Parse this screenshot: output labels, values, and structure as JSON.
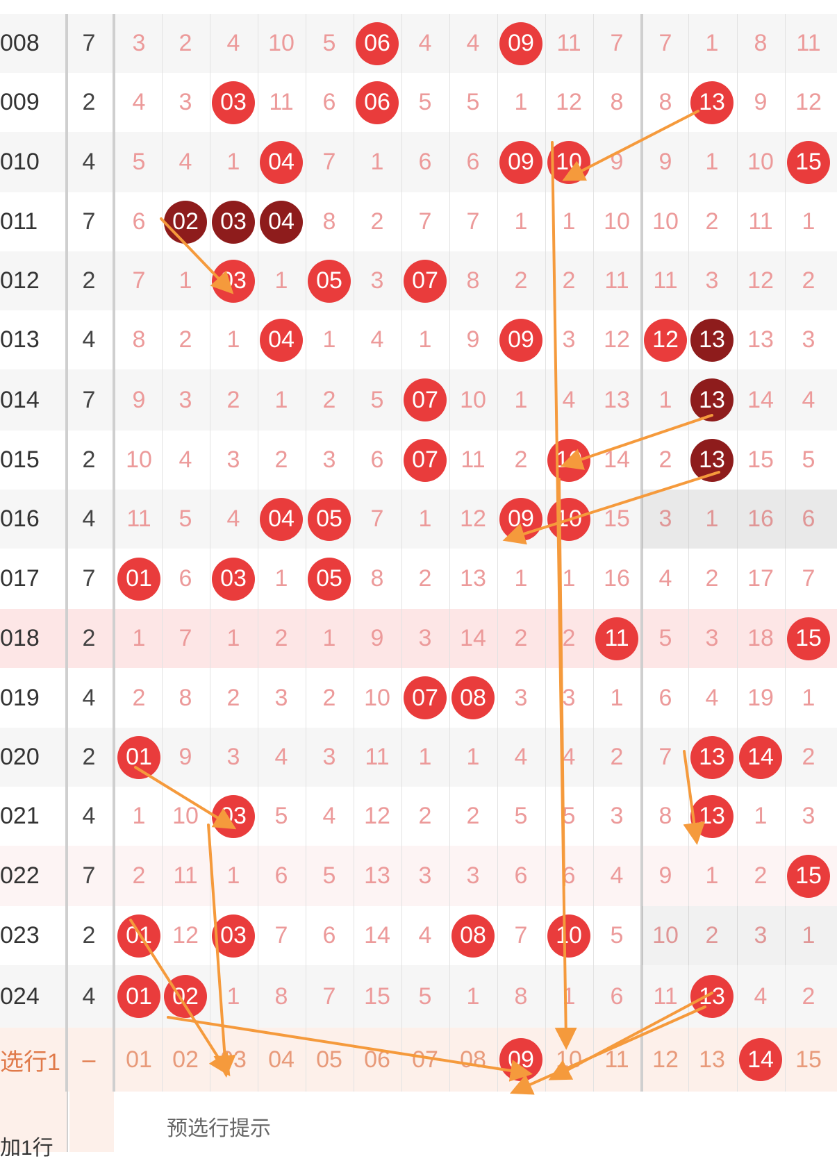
{
  "rows": [
    {
      "issue": "008",
      "sum": "7",
      "cells": [
        {
          "v": "3"
        },
        {
          "v": "2"
        },
        {
          "v": "4"
        },
        {
          "v": "10"
        },
        {
          "v": "5"
        },
        {
          "v": "06",
          "b": "red"
        },
        {
          "v": "4"
        },
        {
          "v": "4"
        },
        {
          "v": "09",
          "b": "red"
        },
        {
          "v": "11"
        },
        {
          "v": "7"
        },
        {
          "v": "7"
        },
        {
          "v": "1"
        },
        {
          "v": "8"
        },
        {
          "v": "11"
        }
      ]
    },
    {
      "issue": "009",
      "sum": "2",
      "cells": [
        {
          "v": "4"
        },
        {
          "v": "3"
        },
        {
          "v": "03",
          "b": "red"
        },
        {
          "v": "11"
        },
        {
          "v": "6"
        },
        {
          "v": "06",
          "b": "red"
        },
        {
          "v": "5"
        },
        {
          "v": "5"
        },
        {
          "v": "1"
        },
        {
          "v": "12"
        },
        {
          "v": "8"
        },
        {
          "v": "8"
        },
        {
          "v": "13",
          "b": "red"
        },
        {
          "v": "9"
        },
        {
          "v": "12"
        }
      ]
    },
    {
      "issue": "010",
      "sum": "4",
      "cells": [
        {
          "v": "5"
        },
        {
          "v": "4"
        },
        {
          "v": "1"
        },
        {
          "v": "04",
          "b": "red"
        },
        {
          "v": "7"
        },
        {
          "v": "1"
        },
        {
          "v": "6"
        },
        {
          "v": "6"
        },
        {
          "v": "09",
          "b": "red"
        },
        {
          "v": "10",
          "b": "red"
        },
        {
          "v": "9"
        },
        {
          "v": "9"
        },
        {
          "v": "1"
        },
        {
          "v": "10"
        },
        {
          "v": "15",
          "b": "red"
        }
      ]
    },
    {
      "issue": "011",
      "sum": "7",
      "cells": [
        {
          "v": "6"
        },
        {
          "v": "02",
          "b": "dark"
        },
        {
          "v": "03",
          "b": "dark"
        },
        {
          "v": "04",
          "b": "dark"
        },
        {
          "v": "8"
        },
        {
          "v": "2"
        },
        {
          "v": "7"
        },
        {
          "v": "7"
        },
        {
          "v": "1"
        },
        {
          "v": "1"
        },
        {
          "v": "10"
        },
        {
          "v": "10"
        },
        {
          "v": "2"
        },
        {
          "v": "11"
        },
        {
          "v": "1"
        }
      ]
    },
    {
      "issue": "012",
      "sum": "2",
      "cells": [
        {
          "v": "7"
        },
        {
          "v": "1"
        },
        {
          "v": "03",
          "b": "red"
        },
        {
          "v": "1"
        },
        {
          "v": "05",
          "b": "red"
        },
        {
          "v": "3"
        },
        {
          "v": "07",
          "b": "red"
        },
        {
          "v": "8"
        },
        {
          "v": "2"
        },
        {
          "v": "2"
        },
        {
          "v": "11"
        },
        {
          "v": "11"
        },
        {
          "v": "3"
        },
        {
          "v": "12"
        },
        {
          "v": "2"
        }
      ]
    },
    {
      "issue": "013",
      "sum": "4",
      "cells": [
        {
          "v": "8"
        },
        {
          "v": "2"
        },
        {
          "v": "1"
        },
        {
          "v": "04",
          "b": "red"
        },
        {
          "v": "1"
        },
        {
          "v": "4"
        },
        {
          "v": "1"
        },
        {
          "v": "9"
        },
        {
          "v": "09",
          "b": "red"
        },
        {
          "v": "3"
        },
        {
          "v": "12"
        },
        {
          "v": "12",
          "b": "red"
        },
        {
          "v": "13",
          "b": "dark"
        },
        {
          "v": "13"
        },
        {
          "v": "3"
        }
      ]
    },
    {
      "issue": "014",
      "sum": "7",
      "cells": [
        {
          "v": "9"
        },
        {
          "v": "3"
        },
        {
          "v": "2"
        },
        {
          "v": "1"
        },
        {
          "v": "2"
        },
        {
          "v": "5"
        },
        {
          "v": "07",
          "b": "red"
        },
        {
          "v": "10"
        },
        {
          "v": "1"
        },
        {
          "v": "4"
        },
        {
          "v": "13"
        },
        {
          "v": "1"
        },
        {
          "v": "13",
          "b": "dark"
        },
        {
          "v": "14"
        },
        {
          "v": "4"
        }
      ]
    },
    {
      "issue": "015",
      "sum": "2",
      "cells": [
        {
          "v": "10"
        },
        {
          "v": "4"
        },
        {
          "v": "3"
        },
        {
          "v": "2"
        },
        {
          "v": "3"
        },
        {
          "v": "6"
        },
        {
          "v": "07",
          "b": "red"
        },
        {
          "v": "11"
        },
        {
          "v": "2"
        },
        {
          "v": "10",
          "b": "red"
        },
        {
          "v": "14"
        },
        {
          "v": "2"
        },
        {
          "v": "13",
          "b": "dark"
        },
        {
          "v": "15"
        },
        {
          "v": "5"
        }
      ]
    },
    {
      "issue": "016",
      "sum": "4",
      "cells": [
        {
          "v": "11"
        },
        {
          "v": "5"
        },
        {
          "v": "4"
        },
        {
          "v": "04",
          "b": "red"
        },
        {
          "v": "05",
          "b": "red"
        },
        {
          "v": "7"
        },
        {
          "v": "1"
        },
        {
          "v": "12"
        },
        {
          "v": "09",
          "b": "red"
        },
        {
          "v": "10",
          "b": "red"
        },
        {
          "v": "15"
        },
        {
          "v": "3"
        },
        {
          "v": "1"
        },
        {
          "v": "16"
        },
        {
          "v": "6"
        }
      ]
    },
    {
      "issue": "017",
      "sum": "7",
      "cells": [
        {
          "v": "01",
          "b": "red"
        },
        {
          "v": "6"
        },
        {
          "v": "03",
          "b": "red"
        },
        {
          "v": "1"
        },
        {
          "v": "05",
          "b": "red"
        },
        {
          "v": "8"
        },
        {
          "v": "2"
        },
        {
          "v": "13"
        },
        {
          "v": "1"
        },
        {
          "v": "1"
        },
        {
          "v": "16"
        },
        {
          "v": "4"
        },
        {
          "v": "2"
        },
        {
          "v": "17"
        },
        {
          "v": "7"
        }
      ]
    },
    {
      "issue": "018",
      "sum": "2",
      "cells": [
        {
          "v": "1"
        },
        {
          "v": "7"
        },
        {
          "v": "1"
        },
        {
          "v": "2"
        },
        {
          "v": "1"
        },
        {
          "v": "9"
        },
        {
          "v": "3"
        },
        {
          "v": "14"
        },
        {
          "v": "2"
        },
        {
          "v": "2"
        },
        {
          "v": "11",
          "b": "red"
        },
        {
          "v": "5"
        },
        {
          "v": "3"
        },
        {
          "v": "18"
        },
        {
          "v": "15",
          "b": "red"
        }
      ]
    },
    {
      "issue": "019",
      "sum": "4",
      "cells": [
        {
          "v": "2"
        },
        {
          "v": "8"
        },
        {
          "v": "2"
        },
        {
          "v": "3"
        },
        {
          "v": "2"
        },
        {
          "v": "10"
        },
        {
          "v": "07",
          "b": "red"
        },
        {
          "v": "08",
          "b": "red"
        },
        {
          "v": "3"
        },
        {
          "v": "3"
        },
        {
          "v": "1"
        },
        {
          "v": "6"
        },
        {
          "v": "4"
        },
        {
          "v": "19"
        },
        {
          "v": "1"
        }
      ]
    },
    {
      "issue": "020",
      "sum": "2",
      "cells": [
        {
          "v": "01",
          "b": "red"
        },
        {
          "v": "9"
        },
        {
          "v": "3"
        },
        {
          "v": "4"
        },
        {
          "v": "3"
        },
        {
          "v": "11"
        },
        {
          "v": "1"
        },
        {
          "v": "1"
        },
        {
          "v": "4"
        },
        {
          "v": "4"
        },
        {
          "v": "2"
        },
        {
          "v": "7"
        },
        {
          "v": "13",
          "b": "red"
        },
        {
          "v": "14",
          "b": "red"
        },
        {
          "v": "2"
        }
      ]
    },
    {
      "issue": "021",
      "sum": "4",
      "cells": [
        {
          "v": "1"
        },
        {
          "v": "10"
        },
        {
          "v": "03",
          "b": "red"
        },
        {
          "v": "5"
        },
        {
          "v": "4"
        },
        {
          "v": "12"
        },
        {
          "v": "2"
        },
        {
          "v": "2"
        },
        {
          "v": "5"
        },
        {
          "v": "5"
        },
        {
          "v": "3"
        },
        {
          "v": "8"
        },
        {
          "v": "13",
          "b": "red"
        },
        {
          "v": "1"
        },
        {
          "v": "3"
        }
      ]
    },
    {
      "issue": "022",
      "sum": "7",
      "cells": [
        {
          "v": "2"
        },
        {
          "v": "11"
        },
        {
          "v": "1"
        },
        {
          "v": "6"
        },
        {
          "v": "5"
        },
        {
          "v": "13"
        },
        {
          "v": "3"
        },
        {
          "v": "3"
        },
        {
          "v": "6"
        },
        {
          "v": "6"
        },
        {
          "v": "4"
        },
        {
          "v": "9"
        },
        {
          "v": "1"
        },
        {
          "v": "2"
        },
        {
          "v": "15",
          "b": "red"
        }
      ]
    },
    {
      "issue": "023",
      "sum": "2",
      "cells": [
        {
          "v": "01",
          "b": "red"
        },
        {
          "v": "12"
        },
        {
          "v": "03",
          "b": "red"
        },
        {
          "v": "7"
        },
        {
          "v": "6"
        },
        {
          "v": "14"
        },
        {
          "v": "4"
        },
        {
          "v": "08",
          "b": "red"
        },
        {
          "v": "7"
        },
        {
          "v": "10",
          "b": "red"
        },
        {
          "v": "5"
        },
        {
          "v": "10"
        },
        {
          "v": "2"
        },
        {
          "v": "3"
        },
        {
          "v": "1"
        }
      ]
    },
    {
      "issue": "024",
      "sum": "4",
      "cells": [
        {
          "v": "01",
          "b": "red"
        },
        {
          "v": "02",
          "b": "red"
        },
        {
          "v": "1"
        },
        {
          "v": "8"
        },
        {
          "v": "7"
        },
        {
          "v": "15"
        },
        {
          "v": "5"
        },
        {
          "v": "1"
        },
        {
          "v": "8"
        },
        {
          "v": "1"
        },
        {
          "v": "6"
        },
        {
          "v": "11"
        },
        {
          "v": "13",
          "b": "red"
        },
        {
          "v": "4"
        },
        {
          "v": "2"
        }
      ]
    }
  ],
  "preselect": {
    "label": "选行1",
    "sum": "–",
    "cells": [
      {
        "v": "01"
      },
      {
        "v": "02"
      },
      {
        "v": "03"
      },
      {
        "v": "04"
      },
      {
        "v": "05"
      },
      {
        "v": "06"
      },
      {
        "v": "07"
      },
      {
        "v": "08"
      },
      {
        "v": "09",
        "b": "red"
      },
      {
        "v": "10"
      },
      {
        "v": "11"
      },
      {
        "v": "12"
      },
      {
        "v": "13"
      },
      {
        "v": "14",
        "b": "red"
      },
      {
        "v": "15"
      }
    ]
  },
  "hint_text": "预选行提示",
  "add_row_label": "加1行",
  "colors": {
    "ball_red": "#e93c3c",
    "ball_dark": "#8e1c1c",
    "arrow": "#f59a3c",
    "number_pink": "#ec9a9a"
  }
}
